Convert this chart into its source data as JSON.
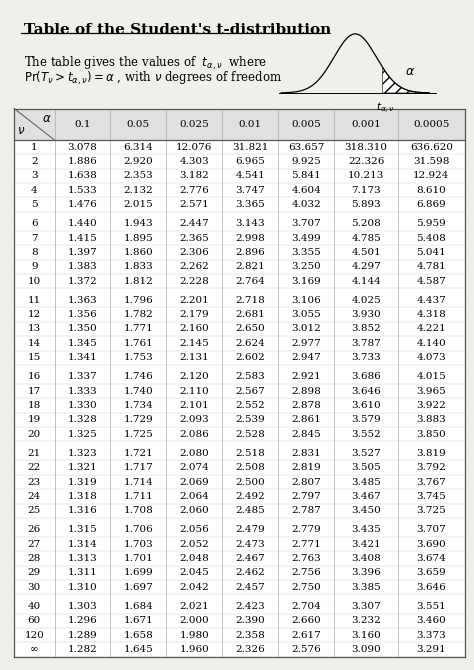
{
  "title_normal": "Table of the Student's ",
  "title_italic": "t",
  "title_rest": "-distribution",
  "desc_line1": "The table gives the values of  t_{α,ν}  where",
  "desc_line2": "Pr(T_ν > t_{α,ν}) = α , with ν degrees of freedom",
  "alpha_cols": [
    "0.1",
    "0.05",
    "0.025",
    "0.01",
    "0.005",
    "0.001",
    "0.0005"
  ],
  "rows": [
    [
      "1",
      "3.078",
      "6.314",
      "12.076",
      "31.821",
      "63.657",
      "318.310",
      "636.620"
    ],
    [
      "2",
      "1.886",
      "2.920",
      "4.303",
      "6.965",
      "9.925",
      "22.326",
      "31.598"
    ],
    [
      "3",
      "1.638",
      "2.353",
      "3.182",
      "4.541",
      "5.841",
      "10.213",
      "12.924"
    ],
    [
      "4",
      "1.533",
      "2.132",
      "2.776",
      "3.747",
      "4.604",
      "7.173",
      "8.610"
    ],
    [
      "5",
      "1.476",
      "2.015",
      "2.571",
      "3.365",
      "4.032",
      "5.893",
      "6.869"
    ],
    [
      "6",
      "1.440",
      "1.943",
      "2.447",
      "3.143",
      "3.707",
      "5.208",
      "5.959"
    ],
    [
      "7",
      "1.415",
      "1.895",
      "2.365",
      "2.998",
      "3.499",
      "4.785",
      "5.408"
    ],
    [
      "8",
      "1.397",
      "1.860",
      "2.306",
      "2.896",
      "3.355",
      "4.501",
      "5.041"
    ],
    [
      "9",
      "1.383",
      "1.833",
      "2.262",
      "2.821",
      "3.250",
      "4.297",
      "4.781"
    ],
    [
      "10",
      "1.372",
      "1.812",
      "2.228",
      "2.764",
      "3.169",
      "4.144",
      "4.587"
    ],
    [
      "11",
      "1.363",
      "1.796",
      "2.201",
      "2.718",
      "3.106",
      "4.025",
      "4.437"
    ],
    [
      "12",
      "1.356",
      "1.782",
      "2.179",
      "2.681",
      "3.055",
      "3.930",
      "4.318"
    ],
    [
      "13",
      "1.350",
      "1.771",
      "2.160",
      "2.650",
      "3.012",
      "3.852",
      "4.221"
    ],
    [
      "14",
      "1.345",
      "1.761",
      "2.145",
      "2.624",
      "2.977",
      "3.787",
      "4.140"
    ],
    [
      "15",
      "1.341",
      "1.753",
      "2.131",
      "2.602",
      "2.947",
      "3.733",
      "4.073"
    ],
    [
      "16",
      "1.337",
      "1.746",
      "2.120",
      "2.583",
      "2.921",
      "3.686",
      "4.015"
    ],
    [
      "17",
      "1.333",
      "1.740",
      "2.110",
      "2.567",
      "2.898",
      "3.646",
      "3.965"
    ],
    [
      "18",
      "1.330",
      "1.734",
      "2.101",
      "2.552",
      "2.878",
      "3.610",
      "3.922"
    ],
    [
      "19",
      "1.328",
      "1.729",
      "2.093",
      "2.539",
      "2.861",
      "3.579",
      "3.883"
    ],
    [
      "20",
      "1.325",
      "1.725",
      "2.086",
      "2.528",
      "2.845",
      "3.552",
      "3.850"
    ],
    [
      "21",
      "1.323",
      "1.721",
      "2.080",
      "2.518",
      "2.831",
      "3.527",
      "3.819"
    ],
    [
      "22",
      "1.321",
      "1.717",
      "2.074",
      "2.508",
      "2.819",
      "3.505",
      "3.792"
    ],
    [
      "23",
      "1.319",
      "1.714",
      "2.069",
      "2.500",
      "2.807",
      "3.485",
      "3.767"
    ],
    [
      "24",
      "1.318",
      "1.711",
      "2.064",
      "2.492",
      "2.797",
      "3.467",
      "3.745"
    ],
    [
      "25",
      "1.316",
      "1.708",
      "2.060",
      "2.485",
      "2.787",
      "3.450",
      "3.725"
    ],
    [
      "26",
      "1.315",
      "1.706",
      "2.056",
      "2.479",
      "2.779",
      "3.435",
      "3.707"
    ],
    [
      "27",
      "1.314",
      "1.703",
      "2.052",
      "2.473",
      "2.771",
      "3.421",
      "3.690"
    ],
    [
      "28",
      "1.313",
      "1.701",
      "2.048",
      "2.467",
      "2.763",
      "3.408",
      "3.674"
    ],
    [
      "29",
      "1.311",
      "1.699",
      "2.045",
      "2.462",
      "2.756",
      "3.396",
      "3.659"
    ],
    [
      "30",
      "1.310",
      "1.697",
      "2.042",
      "2.457",
      "2.750",
      "3.385",
      "3.646"
    ],
    [
      "40",
      "1.303",
      "1.684",
      "2.021",
      "2.423",
      "2.704",
      "3.307",
      "3.551"
    ],
    [
      "60",
      "1.296",
      "1.671",
      "2.000",
      "2.390",
      "2.660",
      "3.232",
      "3.460"
    ],
    [
      "120",
      "1.289",
      "1.658",
      "1.980",
      "2.358",
      "2.617",
      "3.160",
      "3.373"
    ],
    [
      "∞",
      "1.282",
      "1.645",
      "1.960",
      "2.326",
      "2.576",
      "3.090",
      "3.291"
    ]
  ],
  "group_counts": [
    5,
    5,
    5,
    5,
    5,
    5,
    4
  ],
  "bg_color": "#f0f0eb",
  "table_bg": "#ffffff",
  "border_color": "#555555",
  "grid_color": "#aaaaaa",
  "thin_line_color": "#cccccc"
}
